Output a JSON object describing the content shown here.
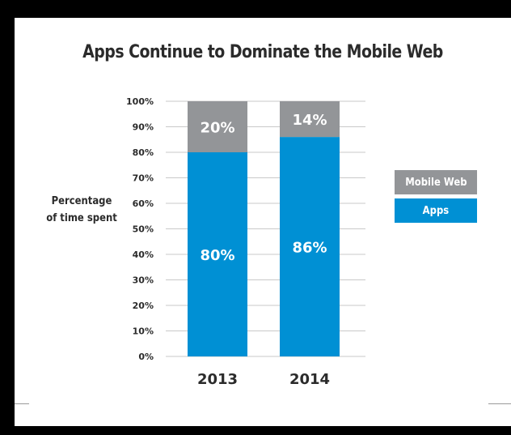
{
  "chart_data": {
    "type": "bar",
    "stacked": true,
    "title": "Apps Continue to Dominate the Mobile Web",
    "ylabel_lines": [
      "Percentage",
      "of time spent"
    ],
    "xlabel": "",
    "categories": [
      "2013",
      "2014"
    ],
    "ylim": [
      0,
      100
    ],
    "yticks": [
      0,
      10,
      20,
      30,
      40,
      50,
      60,
      70,
      80,
      90,
      100
    ],
    "ytick_labels": [
      "0%",
      "10%",
      "20%",
      "30%",
      "40%",
      "50%",
      "60%",
      "70%",
      "80%",
      "90%",
      "100%"
    ],
    "grid": true,
    "series": [
      {
        "name": "Apps",
        "color": "#0090d4",
        "values": [
          80,
          86
        ],
        "labels": [
          "80%",
          "86%"
        ]
      },
      {
        "name": "Mobile Web",
        "color": "#939598",
        "values": [
          20,
          14
        ],
        "labels": [
          "20%",
          "14%"
        ]
      }
    ],
    "legend": [
      "Mobile Web",
      "Apps"
    ],
    "legend_placement": "right"
  }
}
